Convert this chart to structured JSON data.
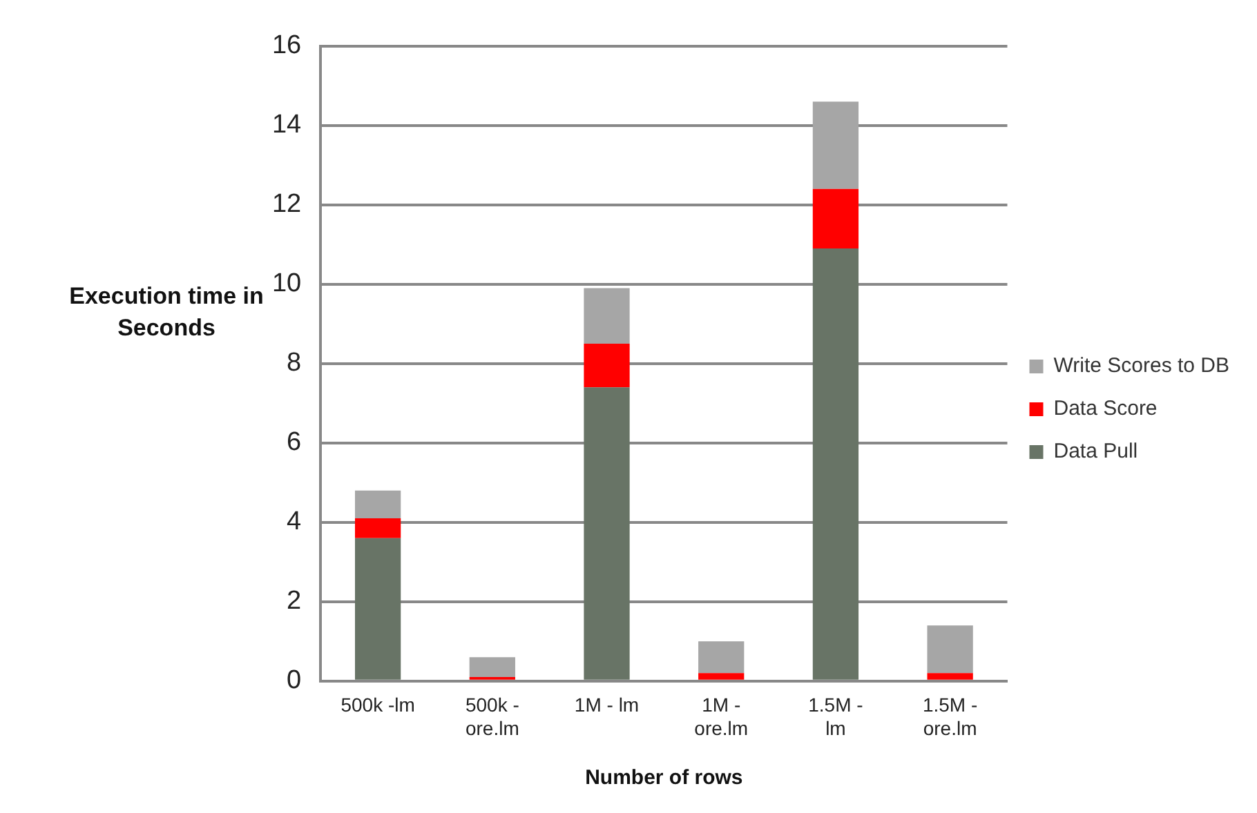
{
  "chart_data": {
    "type": "bar",
    "xlabel": "Number of rows",
    "ylabel": "Execution time in Seconds",
    "categories": [
      "500k -lm",
      "500k -ore.lm",
      "1M - lm",
      "1M - ore.lm",
      "1.5M - lm",
      "1.5M - ore.lm"
    ],
    "stacked": true,
    "ylim": [
      0,
      16
    ],
    "yticks": [
      0,
      2,
      4,
      6,
      8,
      10,
      12,
      14,
      16
    ],
    "grid": "y",
    "legend": "right",
    "series": [
      {
        "name": "Data Pull",
        "color": "#687466",
        "values": [
          3.6,
          0,
          7.4,
          0,
          10.9,
          0
        ]
      },
      {
        "name": "Data Score",
        "color": "#ff0000",
        "values": [
          0.5,
          0.1,
          1.1,
          0.2,
          1.5,
          0.2
        ]
      },
      {
        "name": "Write Scores to DB",
        "color": "#a6a6a6",
        "values": [
          0.7,
          0.5,
          1.4,
          0.8,
          2.2,
          1.2
        ]
      }
    ]
  }
}
